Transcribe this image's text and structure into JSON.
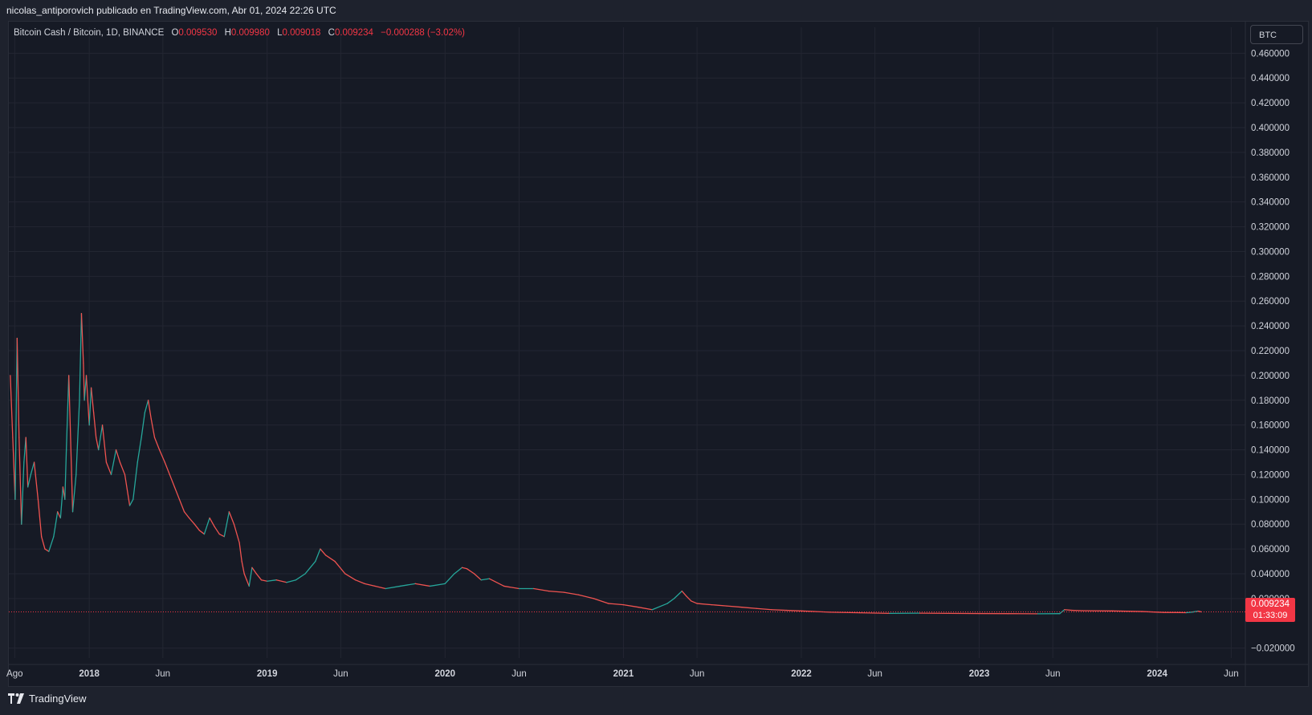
{
  "header": {
    "caption": "nicolas_antiporovich publicado en TradingView.com, Abr 01, 2024 22:26 UTC"
  },
  "legend": {
    "symbol": "Bitcoin Cash / Bitcoin, 1D, BINANCE",
    "o_label": "O",
    "o_value": "0.009530",
    "h_label": "H",
    "h_value": "0.009980",
    "l_label": "L",
    "l_value": "0.009018",
    "c_label": "C",
    "c_value": "0.009234",
    "change": "−0.000288 (−3.02%)"
  },
  "currency_button": "BTC",
  "price_tag": {
    "price": "0.009234",
    "countdown": "01:33:09"
  },
  "brand": "TradingView",
  "colors": {
    "up": "#26a69a",
    "down": "#ef5350",
    "last": "#f23645",
    "background": "#161a25",
    "grid": "#232632"
  },
  "chart_data": {
    "type": "line",
    "title": "Bitcoin Cash / Bitcoin, 1D, BINANCE",
    "ylim": [
      -0.028,
      0.468
    ],
    "y_ticks": [
      -0.02,
      0.02,
      0.04,
      0.06,
      0.08,
      0.1,
      0.12,
      0.14,
      0.16,
      0.18,
      0.2,
      0.22,
      0.24,
      0.26,
      0.28,
      0.3,
      0.32,
      0.34,
      0.36,
      0.38,
      0.4,
      0.42,
      0.44,
      0.46
    ],
    "y_tick_labels": [
      "−0.020000",
      "0.020000",
      "0.040000",
      "0.060000",
      "0.080000",
      "0.100000",
      "0.120000",
      "0.140000",
      "0.160000",
      "0.180000",
      "0.200000",
      "0.220000",
      "0.240000",
      "0.260000",
      "0.280000",
      "0.300000",
      "0.320000",
      "0.340000",
      "0.360000",
      "0.380000",
      "0.400000",
      "0.420000",
      "0.440000",
      "0.460000"
    ],
    "x_ticks": [
      {
        "date": "2017-08-01",
        "label": "Ago",
        "bold": false
      },
      {
        "date": "2018-01-01",
        "label": "2018",
        "bold": true
      },
      {
        "date": "2018-06-01",
        "label": "Jun",
        "bold": false
      },
      {
        "date": "2019-01-01",
        "label": "2019",
        "bold": true
      },
      {
        "date": "2019-06-01",
        "label": "Jun",
        "bold": false
      },
      {
        "date": "2020-01-01",
        "label": "2020",
        "bold": true
      },
      {
        "date": "2020-06-01",
        "label": "Jun",
        "bold": false
      },
      {
        "date": "2021-01-01",
        "label": "2021",
        "bold": true
      },
      {
        "date": "2021-06-01",
        "label": "Jun",
        "bold": false
      },
      {
        "date": "2022-01-01",
        "label": "2022",
        "bold": true
      },
      {
        "date": "2022-06-01",
        "label": "Jun",
        "bold": false
      },
      {
        "date": "2023-01-01",
        "label": "2023",
        "bold": true
      },
      {
        "date": "2023-06-01",
        "label": "Jun",
        "bold": false
      },
      {
        "date": "2024-01-01",
        "label": "2024",
        "bold": true
      },
      {
        "date": "2024-06-01",
        "label": "Jun",
        "bold": false
      }
    ],
    "last_price": 0.009234,
    "series": [
      {
        "x": [
          "2017-07-23",
          "2017-07-28",
          "2017-08-02",
          "2017-08-06",
          "2017-08-10",
          "2017-08-15",
          "2017-08-20",
          "2017-08-24",
          "2017-08-28",
          "2017-09-03",
          "2017-09-10",
          "2017-09-18",
          "2017-09-25",
          "2017-10-02",
          "2017-10-10",
          "2017-10-20",
          "2017-10-28",
          "2017-11-03",
          "2017-11-08",
          "2017-11-12",
          "2017-11-15",
          "2017-11-20",
          "2017-11-28",
          "2017-12-05",
          "2017-12-12",
          "2017-12-16",
          "2017-12-20",
          "2017-12-22",
          "2017-12-26",
          "2018-01-01",
          "2018-01-05",
          "2018-01-10",
          "2018-01-15",
          "2018-01-20",
          "2018-01-28",
          "2018-02-05",
          "2018-02-15",
          "2018-02-25",
          "2018-03-05",
          "2018-03-15",
          "2018-03-25",
          "2018-04-01",
          "2018-04-10",
          "2018-04-18",
          "2018-04-25",
          "2018-05-02",
          "2018-05-08",
          "2018-05-15",
          "2018-05-25",
          "2018-06-05",
          "2018-06-15",
          "2018-06-25",
          "2018-07-05",
          "2018-07-15",
          "2018-07-25",
          "2018-08-05",
          "2018-08-15",
          "2018-08-25",
          "2018-09-05",
          "2018-09-15",
          "2018-09-25",
          "2018-10-05",
          "2018-10-15",
          "2018-10-25",
          "2018-11-05",
          "2018-11-10",
          "2018-11-15",
          "2018-11-20",
          "2018-11-25",
          "2018-12-01",
          "2018-12-10",
          "2018-12-20",
          "2019-01-01",
          "2019-01-20",
          "2019-02-10",
          "2019-03-01",
          "2019-03-20",
          "2019-04-10",
          "2019-04-20",
          "2019-05-01",
          "2019-05-20",
          "2019-06-10",
          "2019-07-01",
          "2019-07-20",
          "2019-08-10",
          "2019-09-01",
          "2019-10-01",
          "2019-11-01",
          "2019-12-01",
          "2020-01-01",
          "2020-01-20",
          "2020-02-05",
          "2020-02-15",
          "2020-03-01",
          "2020-03-15",
          "2020-04-01",
          "2020-05-01",
          "2020-06-01",
          "2020-07-01",
          "2020-08-01",
          "2020-09-01",
          "2020-10-01",
          "2020-11-01",
          "2020-12-01",
          "2021-01-01",
          "2021-02-01",
          "2021-03-01",
          "2021-04-01",
          "2021-04-15",
          "2021-05-01",
          "2021-05-10",
          "2021-05-20",
          "2021-06-01",
          "2021-07-01",
          "2021-08-01",
          "2021-09-01",
          "2021-10-01",
          "2021-11-01",
          "2021-12-01",
          "2022-01-01",
          "2022-03-01",
          "2022-05-01",
          "2022-07-01",
          "2022-09-01",
          "2022-11-01",
          "2023-01-01",
          "2023-03-01",
          "2023-05-01",
          "2023-06-15",
          "2023-06-25",
          "2023-07-10",
          "2023-08-01",
          "2023-10-01",
          "2023-12-01",
          "2024-01-15",
          "2024-02-15",
          "2024-03-01",
          "2024-03-15",
          "2024-03-25",
          "2024-04-01"
        ],
        "y": [
          0.2,
          0.15,
          0.1,
          0.23,
          0.15,
          0.08,
          0.13,
          0.15,
          0.11,
          0.12,
          0.13,
          0.1,
          0.07,
          0.06,
          0.058,
          0.07,
          0.09,
          0.085,
          0.11,
          0.1,
          0.14,
          0.2,
          0.09,
          0.12,
          0.18,
          0.25,
          0.21,
          0.18,
          0.2,
          0.16,
          0.19,
          0.17,
          0.15,
          0.14,
          0.16,
          0.13,
          0.12,
          0.14,
          0.13,
          0.12,
          0.095,
          0.1,
          0.13,
          0.15,
          0.17,
          0.18,
          0.165,
          0.15,
          0.14,
          0.13,
          0.12,
          0.11,
          0.1,
          0.09,
          0.085,
          0.08,
          0.075,
          0.072,
          0.085,
          0.078,
          0.072,
          0.07,
          0.09,
          0.08,
          0.065,
          0.05,
          0.04,
          0.035,
          0.03,
          0.045,
          0.04,
          0.035,
          0.034,
          0.035,
          0.033,
          0.035,
          0.04,
          0.05,
          0.06,
          0.055,
          0.05,
          0.04,
          0.035,
          0.032,
          0.03,
          0.028,
          0.03,
          0.032,
          0.03,
          0.032,
          0.04,
          0.045,
          0.044,
          0.04,
          0.035,
          0.036,
          0.03,
          0.028,
          0.028,
          0.026,
          0.025,
          0.023,
          0.02,
          0.016,
          0.015,
          0.013,
          0.011,
          0.016,
          0.02,
          0.026,
          0.022,
          0.018,
          0.016,
          0.015,
          0.014,
          0.013,
          0.012,
          0.011,
          0.0105,
          0.01,
          0.009,
          0.0085,
          0.008,
          0.0082,
          0.008,
          0.0079,
          0.0078,
          0.0077,
          0.0078,
          0.011,
          0.0105,
          0.0102,
          0.01,
          0.0095,
          0.0088,
          0.0087,
          0.0086,
          0.0092,
          0.0098,
          0.009234
        ]
      }
    ]
  }
}
